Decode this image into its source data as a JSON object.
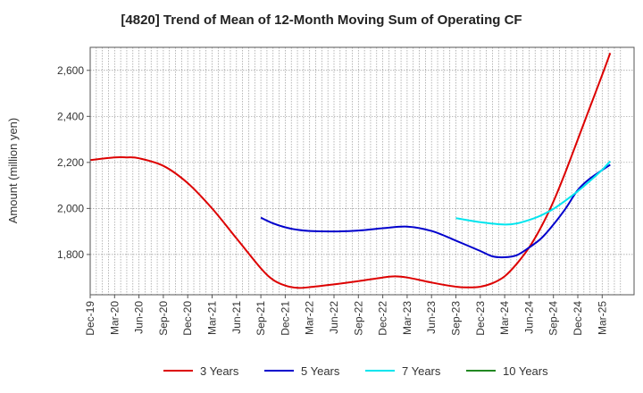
{
  "chart_data": {
    "type": "line",
    "title": "[4820]  Trend of Mean of 12-Month Moving Sum of Operating CF",
    "xlabel": "",
    "ylabel": "Amount (million yen)",
    "ylim": [
      1625,
      2700
    ],
    "yticks": [
      1800,
      2000,
      2200,
      2400,
      2600
    ],
    "ytick_labels": [
      "1,800",
      "2,000",
      "2,200",
      "2,400",
      "2,600"
    ],
    "x_categories": [
      "Dec-19",
      "Mar-20",
      "Jun-20",
      "Sep-20",
      "Dec-20",
      "Mar-21",
      "Jun-21",
      "Sep-21",
      "Dec-21",
      "Mar-22",
      "Jun-22",
      "Sep-22",
      "Dec-22",
      "Mar-23",
      "Jun-23",
      "Sep-23",
      "Dec-23",
      "Mar-24",
      "Jun-24",
      "Sep-24",
      "Dec-24",
      "Mar-25"
    ],
    "grid": true,
    "legend_position": "bottom",
    "series": [
      {
        "name": "3 Years",
        "color": "#dd0000",
        "points": [
          [
            0,
            2210
          ],
          [
            1,
            2222
          ],
          [
            1.5,
            2222
          ],
          [
            2,
            2218
          ],
          [
            3,
            2185
          ],
          [
            4,
            2110
          ],
          [
            5,
            2000
          ],
          [
            6,
            1870
          ],
          [
            7,
            1740
          ],
          [
            7.5,
            1690
          ],
          [
            8,
            1665
          ],
          [
            8.5,
            1655
          ],
          [
            9,
            1658
          ],
          [
            10,
            1670
          ],
          [
            11,
            1684
          ],
          [
            12,
            1700
          ],
          [
            12.5,
            1705
          ],
          [
            13,
            1700
          ],
          [
            14,
            1678
          ],
          [
            15,
            1660
          ],
          [
            15.5,
            1657
          ],
          [
            16,
            1660
          ],
          [
            16.5,
            1675
          ],
          [
            17,
            1705
          ],
          [
            17.5,
            1760
          ],
          [
            18,
            1830
          ],
          [
            18.5,
            1920
          ],
          [
            19,
            2030
          ],
          [
            19.5,
            2160
          ],
          [
            20,
            2300
          ],
          [
            20.5,
            2440
          ],
          [
            21,
            2580
          ],
          [
            21.33,
            2675
          ]
        ]
      },
      {
        "name": "5 Years",
        "color": "#0000cc",
        "points": [
          [
            7,
            1960
          ],
          [
            7.5,
            1935
          ],
          [
            8,
            1918
          ],
          [
            8.5,
            1907
          ],
          [
            9,
            1902
          ],
          [
            10,
            1900
          ],
          [
            11,
            1904
          ],
          [
            12,
            1914
          ],
          [
            13,
            1921
          ],
          [
            14,
            1902
          ],
          [
            15,
            1860
          ],
          [
            16,
            1815
          ],
          [
            16.5,
            1792
          ],
          [
            17,
            1788
          ],
          [
            17.5,
            1797
          ],
          [
            18,
            1830
          ],
          [
            18.5,
            1870
          ],
          [
            19,
            1930
          ],
          [
            19.5,
            2000
          ],
          [
            20,
            2080
          ],
          [
            20.5,
            2130
          ],
          [
            21.33,
            2190
          ]
        ]
      },
      {
        "name": "7 Years",
        "color": "#00e5ee",
        "points": [
          [
            15,
            1958
          ],
          [
            16,
            1940
          ],
          [
            17,
            1930
          ],
          [
            17.5,
            1935
          ],
          [
            18,
            1950
          ],
          [
            18.5,
            1970
          ],
          [
            19,
            1998
          ],
          [
            19.5,
            2035
          ],
          [
            20,
            2075
          ],
          [
            20.5,
            2120
          ],
          [
            21,
            2168
          ],
          [
            21.33,
            2205
          ]
        ]
      },
      {
        "name": "10 Years",
        "color": "#228822",
        "points": []
      }
    ]
  }
}
